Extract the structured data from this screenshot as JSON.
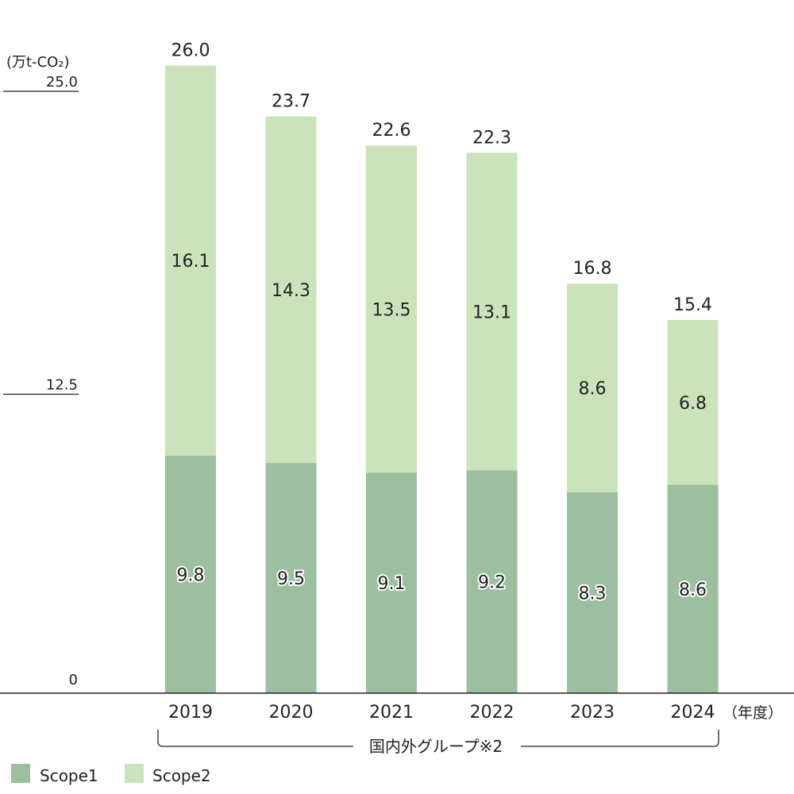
{
  "chart_data": {
    "type": "bar",
    "stacked": true,
    "unit": "(万t-CO₂)",
    "x_unit": "（年度）",
    "group_label": "国内外グループ※2",
    "categories": [
      "2019",
      "2020",
      "2021",
      "2022",
      "2023",
      "2024"
    ],
    "series": [
      {
        "name": "Scope1",
        "values": [
          9.8,
          9.5,
          9.1,
          9.2,
          8.3,
          8.6
        ]
      },
      {
        "name": "Scope2",
        "values": [
          16.1,
          14.3,
          13.5,
          13.1,
          8.6,
          6.8
        ]
      }
    ],
    "totals": [
      "26.0",
      "23.7",
      "22.6",
      "22.3",
      "16.8",
      "15.4"
    ],
    "segment_labels": {
      "Scope1": [
        "9.8",
        "9.5",
        "9.1",
        "9.2",
        "8.3",
        "8.6"
      ],
      "Scope2": [
        "16.1",
        "14.3",
        "13.5",
        "13.1",
        "8.6",
        "6.8"
      ]
    },
    "y_ticks": [
      {
        "value": 0,
        "label": "0"
      },
      {
        "value": 12.5,
        "label": "12.5"
      },
      {
        "value": 25,
        "label": "25.0"
      }
    ],
    "ylim": [
      0,
      25
    ],
    "legend_position": "bottom-left",
    "colors": {
      "Scope1": "#9cbf9f",
      "Scope2": "#cbe3bb",
      "axis": "#222222"
    }
  }
}
